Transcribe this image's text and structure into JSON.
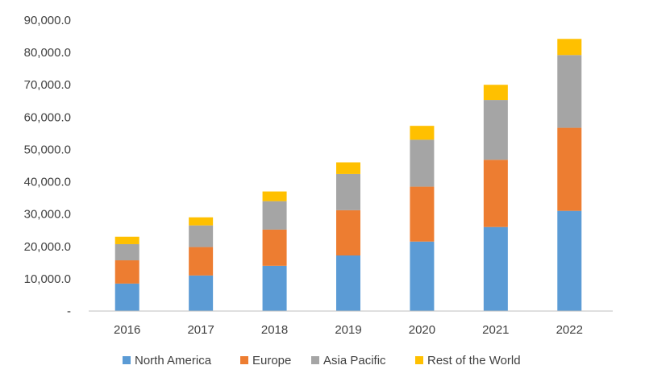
{
  "chart_data": {
    "type": "bar",
    "stacked": true,
    "categories": [
      "2016",
      "2017",
      "2018",
      "2019",
      "2020",
      "2021",
      "2022"
    ],
    "ylim": [
      0,
      90000
    ],
    "yticks": [
      "-",
      "10,000.0",
      "20,000.0",
      "30,000.0",
      "40,000.0",
      "50,000.0",
      "60,000.0",
      "70,000.0",
      "80,000.0",
      "90,000.0"
    ],
    "grid": false,
    "legend_position": "bottom",
    "series": [
      {
        "name": "North America",
        "color": "#5b9bd5",
        "values": [
          8500,
          11000,
          14000,
          17200,
          21500,
          26000,
          31000
        ]
      },
      {
        "name": "Europe",
        "color": "#ed7d31",
        "values": [
          7200,
          8800,
          11200,
          14000,
          17000,
          20800,
          25700
        ]
      },
      {
        "name": "Asia Pacific",
        "color": "#a5a5a5",
        "values": [
          5000,
          6700,
          8800,
          11200,
          14500,
          18500,
          22500
        ]
      },
      {
        "name": "Rest of the World",
        "color": "#ffc000",
        "values": [
          2300,
          2500,
          3000,
          3600,
          4300,
          4700,
          5000
        ]
      }
    ]
  }
}
